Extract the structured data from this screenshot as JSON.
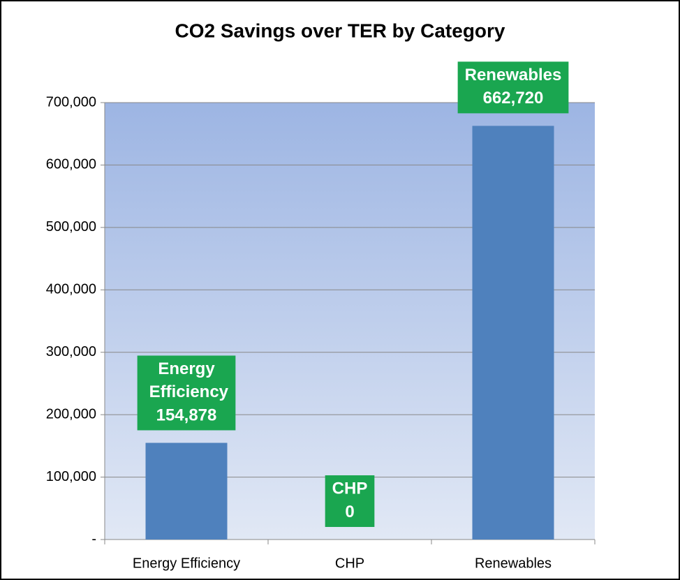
{
  "chart_data": {
    "type": "bar",
    "title": "CO2 Savings over TER by Category",
    "categories": [
      "Energy Efficiency",
      "CHP",
      "Renewables"
    ],
    "values": [
      154878,
      0,
      662720
    ],
    "value_labels": [
      "154,878",
      "0",
      "662,720"
    ],
    "color": "#4f81bd",
    "label_color": "#1aa650",
    "ylim": [
      0,
      700000
    ],
    "yticks": [
      {
        "value": 0,
        "label": "-"
      },
      {
        "value": 100000,
        "label": "100,000"
      },
      {
        "value": 200000,
        "label": "200,000"
      },
      {
        "value": 300000,
        "label": "300,000"
      },
      {
        "value": 400000,
        "label": "400,000"
      },
      {
        "value": 500000,
        "label": "500,000"
      },
      {
        "value": 600000,
        "label": "600,000"
      },
      {
        "value": 700000,
        "label": "700,000"
      }
    ],
    "grid": true
  }
}
